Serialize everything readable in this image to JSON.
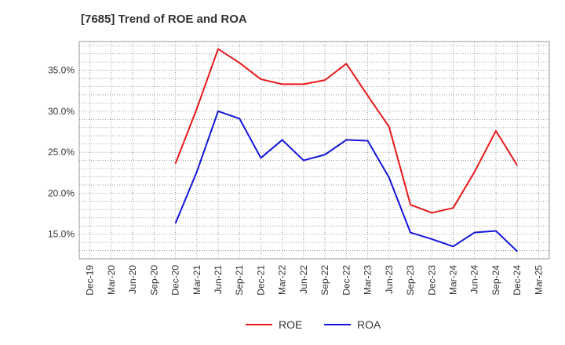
{
  "chart_data": {
    "type": "line",
    "title": "[7685]  Trend of ROE and ROA",
    "xlabel": "",
    "ylabel": "",
    "x": [
      "Dec-19",
      "Mar-20",
      "Jun-20",
      "Sep-20",
      "Dec-20",
      "Mar-21",
      "Jun-21",
      "Sep-21",
      "Dec-21",
      "Mar-22",
      "Jun-22",
      "Sep-22",
      "Dec-22",
      "Mar-23",
      "Jun-23",
      "Sep-23",
      "Dec-23",
      "Mar-24",
      "Jun-24",
      "Sep-24",
      "Dec-24",
      "Mar-25"
    ],
    "ylim": [
      12.0,
      38.5
    ],
    "yticks": [
      15.0,
      20.0,
      25.0,
      30.0,
      35.0
    ],
    "ytick_labels": [
      "15.0%",
      "20.0%",
      "25.0%",
      "30.0%",
      "35.0%"
    ],
    "grid": true,
    "legend_position": "bottom-center",
    "series": [
      {
        "name": "ROE",
        "color": "#e8191a",
        "values": [
          null,
          null,
          null,
          null,
          23.6,
          30.3,
          37.6,
          35.9,
          33.9,
          33.3,
          33.3,
          33.8,
          35.8,
          31.9,
          28.1,
          18.6,
          17.6,
          18.2,
          22.6,
          27.6,
          23.4,
          null
        ]
      },
      {
        "name": "ROA",
        "color": "#1414d8",
        "values": [
          null,
          null,
          null,
          null,
          16.3,
          22.6,
          30.0,
          29.1,
          24.3,
          26.5,
          24.0,
          24.7,
          26.5,
          26.4,
          21.9,
          15.2,
          14.4,
          13.5,
          15.2,
          15.4,
          12.9,
          null
        ]
      }
    ]
  }
}
